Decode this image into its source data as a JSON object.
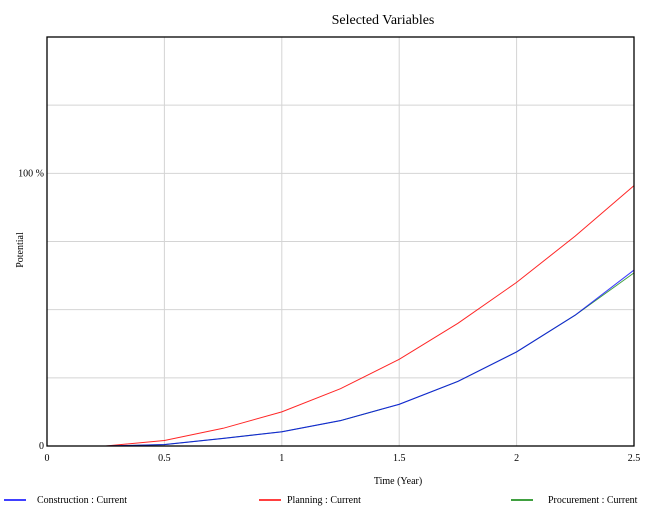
{
  "chart_data": {
    "type": "line",
    "title": "Selected Variables",
    "xlabel": "Time (Year)",
    "ylabel": "Potential",
    "xlim": [
      0,
      2.5
    ],
    "ylim": [
      0,
      1.5
    ],
    "grid": true,
    "legend_placement": "bottom",
    "x_ticks": [
      0,
      0.5,
      1,
      1.5,
      2,
      2.5
    ],
    "x_tick_labels": [
      "0",
      "0.5",
      "1",
      "1.5",
      "2",
      "2.5"
    ],
    "y_ticks": [
      0,
      1
    ],
    "y_tick_labels": [
      "0",
      "100 %"
    ],
    "x": [
      0,
      0.25,
      0.5,
      0.75,
      1,
      1.25,
      1.5,
      1.75,
      2,
      2.25,
      2.5
    ],
    "series": [
      {
        "name": "Construction : Current",
        "color": "#0000ff",
        "values": [
          0,
          0,
          0.005,
          0.028,
          0.052,
          0.093,
          0.153,
          0.237,
          0.345,
          0.48,
          0.645
        ]
      },
      {
        "name": "Planning : Current",
        "color": "#ff0000",
        "values": [
          0,
          0,
          0.02,
          0.065,
          0.125,
          0.21,
          0.318,
          0.45,
          0.6,
          0.77,
          0.955
        ]
      },
      {
        "name": "Procurement : Current",
        "color": "#008000",
        "values": [
          0,
          0,
          0.005,
          0.028,
          0.052,
          0.093,
          0.153,
          0.237,
          0.345,
          0.48,
          0.635
        ]
      }
    ]
  }
}
